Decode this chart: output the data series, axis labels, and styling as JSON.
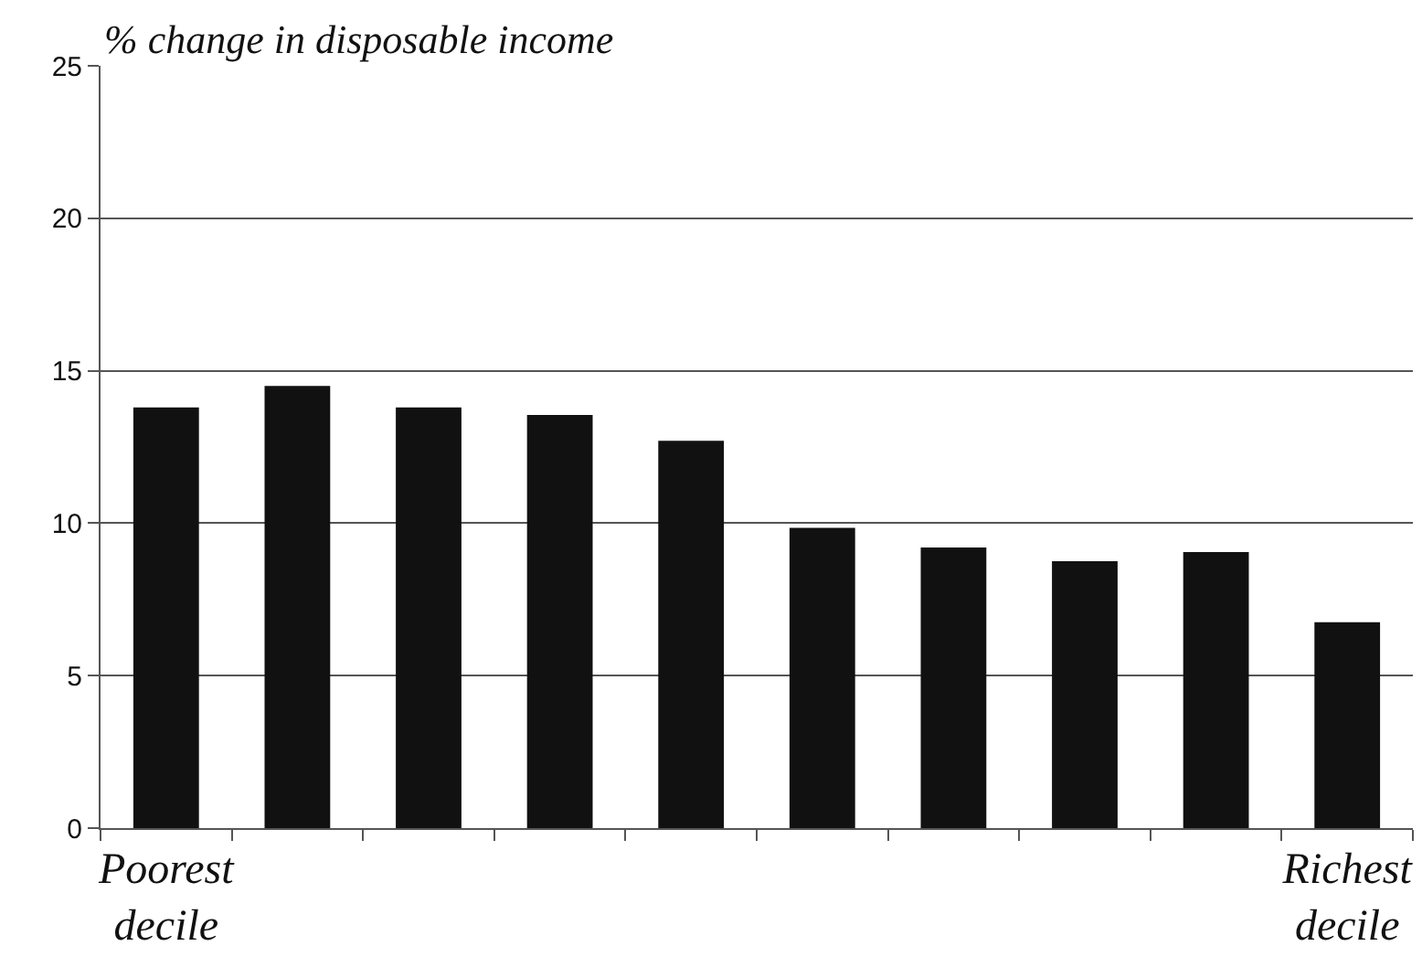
{
  "chart_data": {
    "type": "bar",
    "ylabel": "% change in disposable income",
    "categories": [
      "Poorest decile",
      null,
      null,
      null,
      null,
      null,
      null,
      null,
      null,
      "Richest decile"
    ],
    "values": [
      13.8,
      14.5,
      13.8,
      13.55,
      12.7,
      9.85,
      9.2,
      8.75,
      9.05,
      6.75
    ],
    "color": "#111111",
    "ylim": [
      0,
      25
    ],
    "yticks": [
      0,
      5,
      10,
      15,
      20,
      25
    ],
    "grid": "y",
    "legend": false
  }
}
